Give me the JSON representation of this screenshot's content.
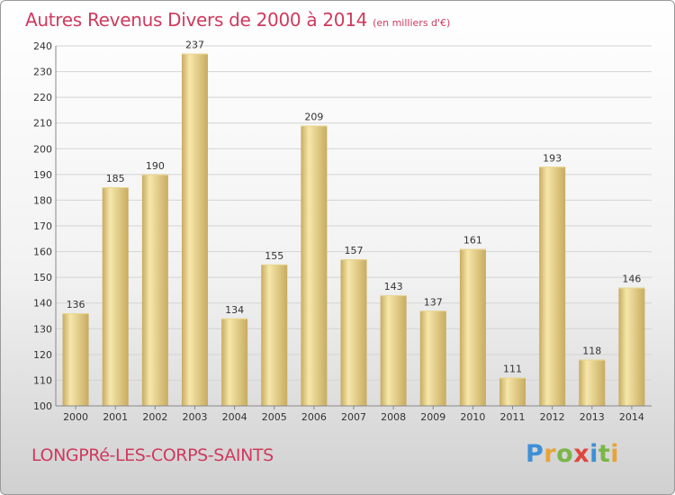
{
  "page": {
    "title": "Autres Revenus Divers de 2000 à 2014",
    "unit": "(en milliers d'€)",
    "commune": "LONGPRé-LES-CORPS-SAINTS",
    "logo": {
      "text": "Proxiti",
      "letters": [
        {
          "char": "P",
          "color": "#3f8fd6"
        },
        {
          "char": "r",
          "color": "#e8a33a"
        },
        {
          "char": "o",
          "color": "#7ab648"
        },
        {
          "char": "x",
          "color": "#e0463c"
        },
        {
          "char": "i",
          "color": "#3f8fd6"
        },
        {
          "char": "t",
          "color": "#7ab648"
        },
        {
          "char": "i",
          "color": "#e8a33a"
        }
      ]
    }
  },
  "colors": {
    "title": "#cf3a5e",
    "bar_light": "#f6e7aa",
    "bar_dark": "#c8ab60",
    "grid": "#d4d4d4",
    "axis": "#888888"
  },
  "chart_data": {
    "type": "bar",
    "title": "Autres Revenus Divers de 2000 à 2014",
    "subtitle": "(en milliers d'€)",
    "categories": [
      "2000",
      "2001",
      "2002",
      "2003",
      "2004",
      "2005",
      "2006",
      "2007",
      "2008",
      "2009",
      "2010",
      "2011",
      "2012",
      "2013",
      "2014"
    ],
    "values": [
      136,
      185,
      190,
      237,
      134,
      155,
      209,
      157,
      143,
      137,
      161,
      111,
      193,
      118,
      146
    ],
    "ylim": [
      100,
      240
    ],
    "yticks": [
      100,
      110,
      120,
      130,
      140,
      150,
      160,
      170,
      180,
      190,
      200,
      210,
      220,
      230,
      240
    ],
    "grid": true,
    "data_labels": true
  }
}
